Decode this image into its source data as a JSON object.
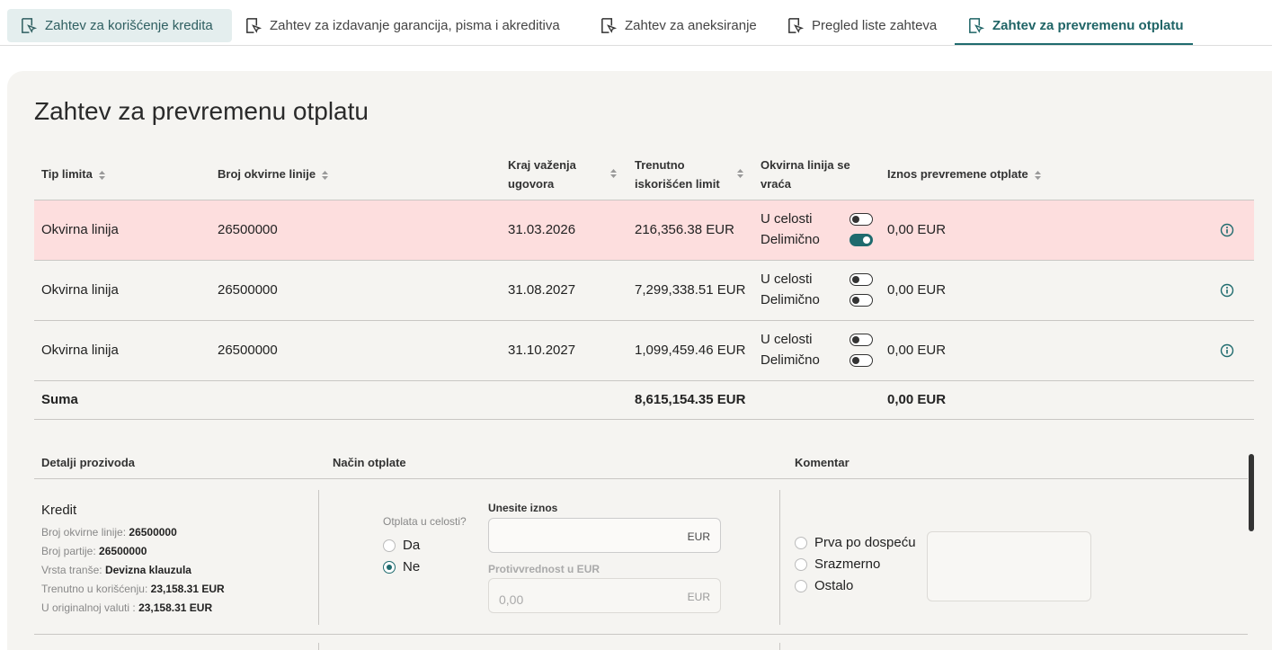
{
  "tabs": [
    "Zahtev za korišćenje kredita",
    "Zahtev za izdavanje garancija, pisma i akreditiva",
    "Zahtev za aneksiranje",
    "Pregled liste zahteva",
    "Zahtev za prevremenu otplatu"
  ],
  "title": "Zahtev za prevremenu otplatu",
  "table": {
    "headers": [
      "Tip limita",
      "Broj okvirne linije",
      "Kraj važenja ugovora",
      "Trenutno iskorišćen limit",
      "Okvirna linija se vraća",
      "Iznos prevremene otplate"
    ],
    "rows": [
      {
        "cells": [
          "Okvirna linija",
          "26500000",
          "31.03.2026",
          "216,356.38 EUR",
          "0,00 EUR"
        ],
        "options": [
          {
            "label": "U celosti",
            "on": false
          },
          {
            "label": "Delimično",
            "on": true
          }
        ]
      },
      {
        "cells": [
          "Okvirna linija",
          "26500000",
          "31.08.2027",
          "7,299,338.51 EUR",
          "0,00 EUR"
        ],
        "options": [
          {
            "label": "U celosti",
            "on": false
          },
          {
            "label": "Delimično",
            "on": false
          }
        ]
      },
      {
        "cells": [
          "Okvirna linija",
          "26500000",
          "31.10.2027",
          "1,099,459.46 EUR",
          "0,00 EUR"
        ],
        "options": [
          {
            "label": "U celosti",
            "on": false
          },
          {
            "label": "Delimično",
            "on": false
          }
        ]
      }
    ],
    "sum": [
      "Suma",
      "8,615,154.35 EUR",
      "0,00 EUR"
    ]
  },
  "details": {
    "headers": [
      "Detalji prozivoda",
      "Način otplate",
      "Komentar"
    ],
    "product": {
      "name": "Kredit",
      "fields": [
        {
          "label": "Broj okvirne linije:",
          "value": "26500000"
        },
        {
          "label": "Broj partije:",
          "value": "26500000"
        },
        {
          "label": "Vrsta tranše:",
          "value": "Devizna klauzula"
        },
        {
          "label": "Trenutno u korišćenju:",
          "value": "23,158.31 EUR"
        },
        {
          "label": "U originalnoj valuti :",
          "value": "23,158.31 EUR"
        }
      ]
    },
    "payment": {
      "question": "Otplata u celosti?",
      "options": [
        {
          "label": "Da",
          "checked": false
        },
        {
          "label": "Ne",
          "checked": true
        }
      ],
      "amount_label": "Unesite iznos",
      "amount_currency": "EUR",
      "counter_label": "Protivvrednost u EUR",
      "counter_placeholder": "0,00",
      "counter_currency": "EUR"
    },
    "comment": {
      "options": [
        {
          "label": "Prva po dospeću",
          "checked": false
        },
        {
          "label": "Srazmerno",
          "checked": false
        },
        {
          "label": "Ostalo",
          "checked": false
        }
      ]
    }
  }
}
